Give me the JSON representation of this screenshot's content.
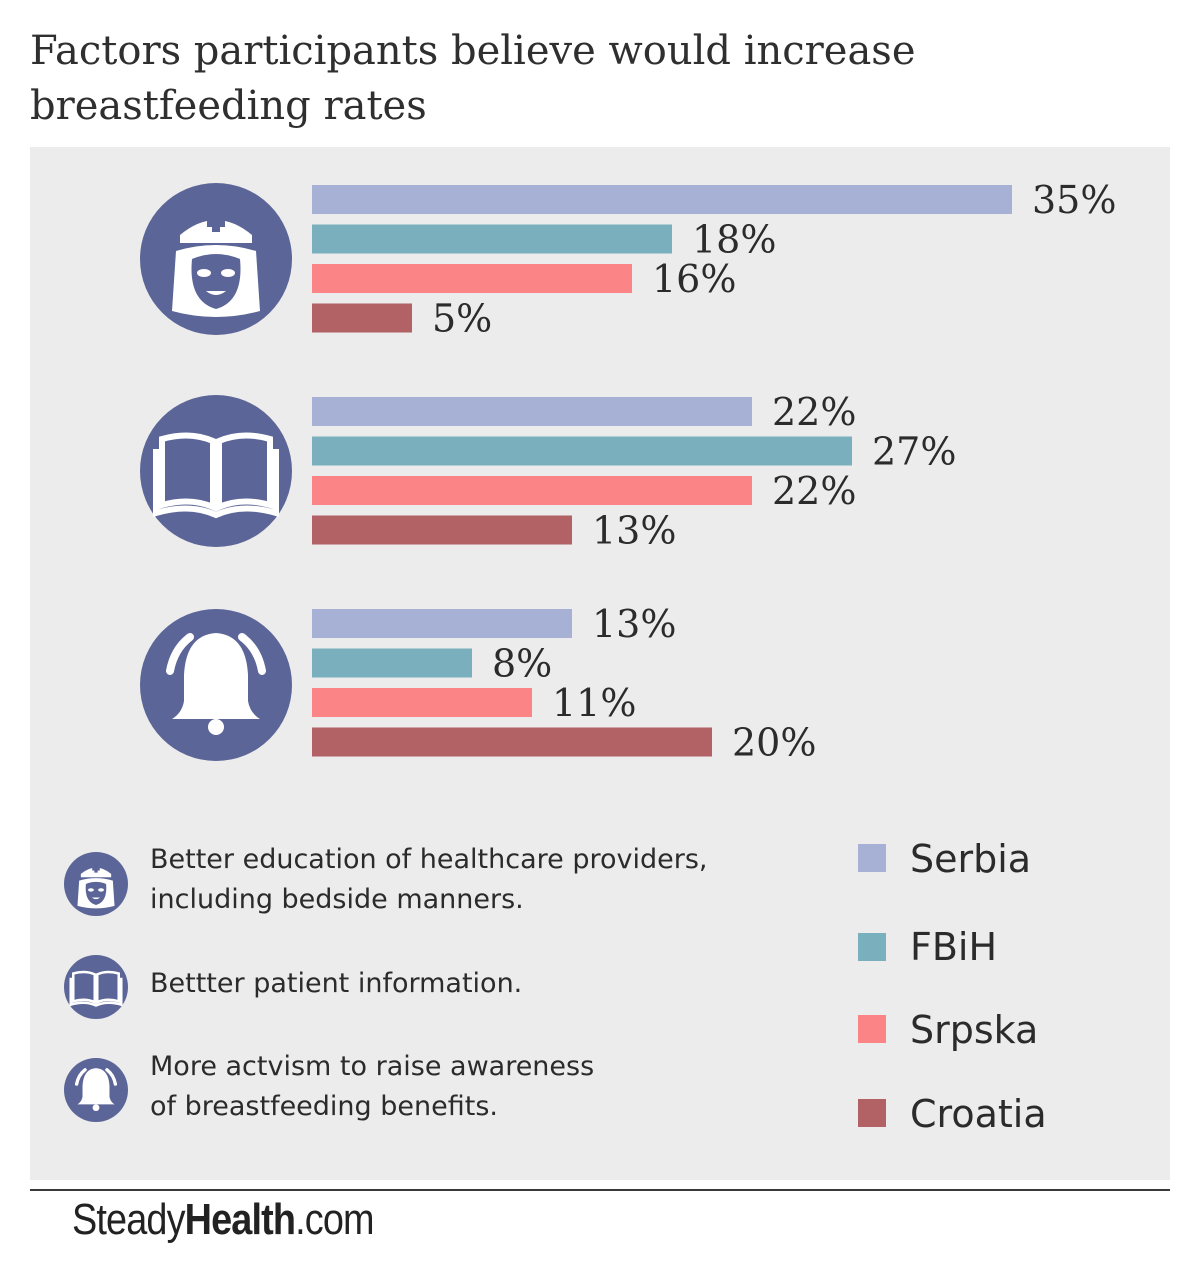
{
  "title": "Factors participants believe would increase breastfeeding rates",
  "colors": {
    "panel_bg": "#ececec",
    "icon_circle": "#5b6597",
    "Serbia": "#a7b0d5",
    "FBiH": "#7aafbd",
    "Srpska": "#fb8586",
    "Croatia": "#b26164"
  },
  "chart_data": {
    "type": "bar",
    "orientation": "horizontal",
    "categories": [
      "Better education of healthcare providers, including bedside manners.",
      "Bettter patient information.",
      "More actvism to raise awareness of breastfeeding benefits."
    ],
    "category_icons": [
      "nurse-icon",
      "book-icon",
      "bell-icon"
    ],
    "series": [
      {
        "name": "Serbia",
        "values": [
          35,
          22,
          13
        ]
      },
      {
        "name": "FBiH",
        "values": [
          18,
          27,
          8
        ]
      },
      {
        "name": "Srpska",
        "values": [
          16,
          22,
          11
        ]
      },
      {
        "name": "Croatia",
        "values": [
          5,
          13,
          20
        ]
      }
    ],
    "value_labels": [
      [
        "35%",
        "22%",
        "13%"
      ],
      [
        "18%",
        "27%",
        "8%"
      ],
      [
        "16%",
        "22%",
        "11%"
      ],
      [
        "5%",
        "13%",
        "20%"
      ]
    ],
    "unit": "%",
    "xlim": [
      0,
      35
    ],
    "grid": false,
    "legend_position": "bottom-right"
  },
  "legend": {
    "descriptions": [
      {
        "icon": "nurse-icon",
        "lines": [
          "Better education of healthcare providers,",
          "including bedside manners."
        ]
      },
      {
        "icon": "book-icon",
        "lines": [
          "Bettter patient information."
        ]
      },
      {
        "icon": "bell-icon",
        "lines": [
          "More actvism to raise awareness",
          "of breastfeeding benefits."
        ]
      }
    ],
    "series": [
      "Serbia",
      "FBiH",
      "Srpska",
      "Croatia"
    ]
  },
  "footer": {
    "brand_pre": "Steady",
    "brand_bold": "Health",
    "brand_post": ".com"
  }
}
